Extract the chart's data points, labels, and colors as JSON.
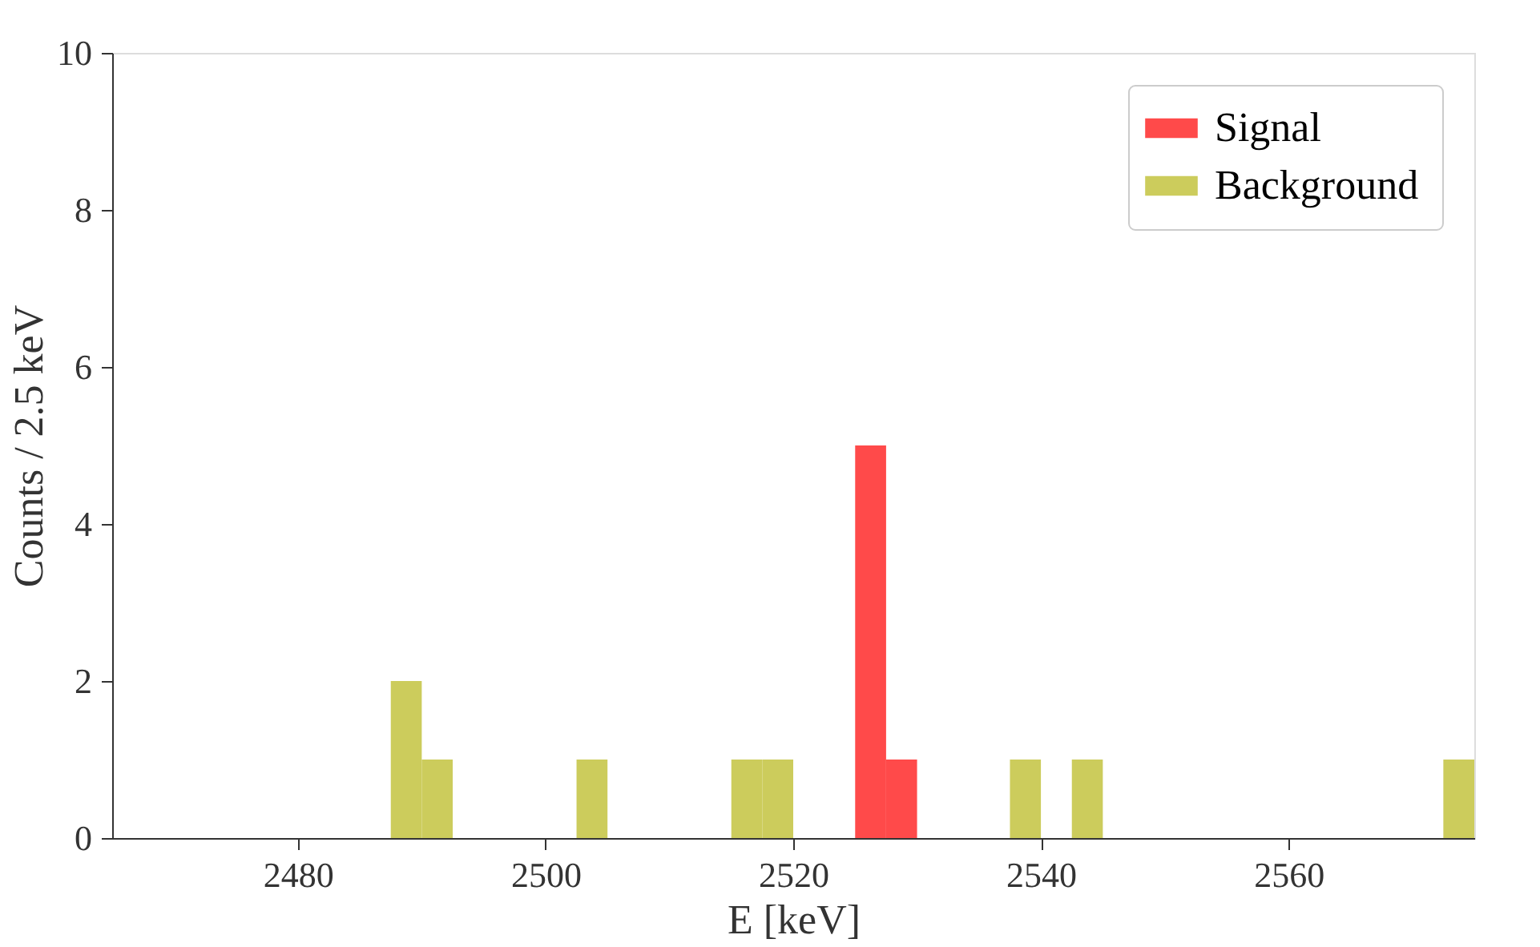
{
  "chart_data": {
    "type": "histogram",
    "xlabel": "E [keV]",
    "ylabel": "Counts / 2.5 keV",
    "bins": [
      2487.5,
      2490,
      2492.5,
      2495,
      2497.5,
      2500,
      2502.5,
      2505,
      2507.5,
      2510,
      2512.5,
      2515,
      2517.5,
      2520,
      2522.5,
      2525,
      2527.5,
      2530,
      2532.5,
      2535,
      2537.5,
      2540,
      2542.5,
      2545,
      2547.5,
      2550,
      2552.5,
      2555,
      2557.5,
      2560,
      2562.5,
      2565,
      2567.5,
      2570,
      2572.5,
      2575
    ],
    "series": [
      {
        "name": "Signal",
        "color": "#ff4a4a",
        "values": [
          0,
          0,
          0,
          0,
          0,
          0,
          0,
          0,
          0,
          0,
          0,
          0,
          0,
          0,
          0,
          5,
          1,
          0,
          0,
          0,
          0,
          0,
          0,
          0,
          0,
          0,
          0,
          0,
          0,
          0,
          0,
          0,
          0,
          0,
          0
        ]
      },
      {
        "name": "Background",
        "color": "#cccc5c",
        "values": [
          2,
          1,
          0,
          0,
          0,
          0,
          1,
          0,
          0,
          0,
          0,
          1,
          1,
          0,
          0,
          0,
          0,
          0,
          0,
          0,
          1,
          0,
          1,
          0,
          0,
          0,
          0,
          0,
          0,
          0,
          0,
          0,
          0,
          0,
          1
        ]
      }
    ],
    "xlim": [
      2465,
      2575
    ],
    "xticks": [
      2480,
      2500,
      2520,
      2540,
      2560
    ],
    "ylim": [
      0,
      10
    ],
    "yticks": [
      0,
      2,
      4,
      6,
      8,
      10
    ],
    "grid": false,
    "legend": "top right"
  }
}
